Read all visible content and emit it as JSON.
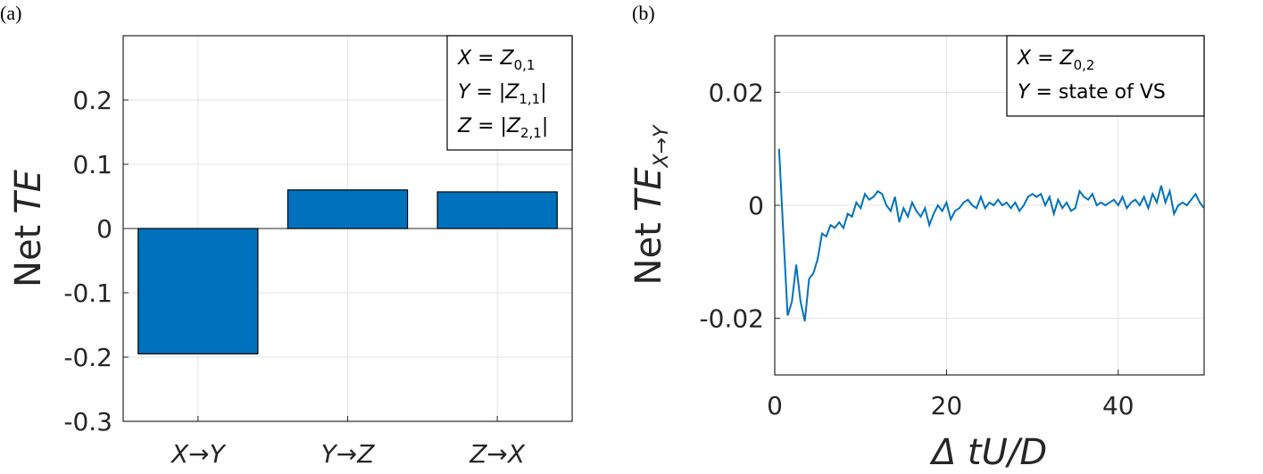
{
  "chart_data": [
    {
      "type": "bar",
      "panel": "(a)",
      "ylabel": {
        "text": "Net",
        "italic": "TE"
      },
      "categories": [
        "X→Y",
        "Y→Z",
        "Z→X"
      ],
      "values": [
        -0.195,
        0.06,
        0.057
      ],
      "color": "#0072bd",
      "ylim": [
        -0.3,
        0.3
      ],
      "yticks": [
        -0.3,
        -0.2,
        -0.1,
        0,
        0.1,
        0.2
      ],
      "grid": true,
      "annotations": [
        {
          "name": "X",
          "op": "=",
          "value": "Z",
          "sub": "0,1"
        },
        {
          "name": "Y",
          "op": "=",
          "value": "|Z",
          "sub": "1,1",
          "tail": "|"
        },
        {
          "name": "Z",
          "op": "=",
          "value": "|Z",
          "sub": "2,1",
          "tail": "|"
        }
      ],
      "legend": "upper right"
    },
    {
      "type": "line",
      "panel": "(b)",
      "ylabel": {
        "text": "Net",
        "italic": "TE",
        "sub": "X→Y"
      },
      "xlabel": "Δ tU/D",
      "x": [
        0.5,
        1,
        1.5,
        2,
        2.5,
        3,
        3.5,
        4,
        4.5,
        5,
        5.5,
        6,
        6.5,
        7,
        7.5,
        8,
        8.5,
        9,
        9.5,
        10,
        10.5,
        11,
        11.5,
        12,
        12.5,
        13,
        13.5,
        14,
        14.5,
        15,
        15.5,
        16,
        16.5,
        17,
        17.5,
        18,
        18.5,
        19,
        19.5,
        20,
        20.5,
        21,
        21.5,
        22,
        22.5,
        23,
        23.5,
        24,
        24.5,
        25,
        25.5,
        26,
        26.5,
        27,
        27.5,
        28,
        28.5,
        29,
        29.5,
        30,
        30.5,
        31,
        31.5,
        32,
        32.5,
        33,
        33.5,
        34,
        34.5,
        35,
        35.5,
        36,
        36.5,
        37,
        37.5,
        38,
        38.5,
        39,
        39.5,
        40,
        40.5,
        41,
        41.5,
        42,
        42.5,
        43,
        43.5,
        44,
        44.5,
        45,
        45.5,
        46,
        46.5,
        47,
        47.5,
        48,
        48.5,
        49,
        49.5,
        50
      ],
      "values": [
        0.01,
        -0.005,
        -0.0195,
        -0.017,
        -0.0105,
        -0.017,
        -0.0205,
        -0.013,
        -0.012,
        -0.0095,
        -0.005,
        -0.0055,
        -0.0035,
        -0.004,
        -0.003,
        -0.004,
        -0.0015,
        -0.002,
        0.0005,
        -0.0005,
        0.002,
        0.001,
        0.0015,
        0.0025,
        0.002,
        0,
        -0.001,
        0.0015,
        -0.003,
        -0.0005,
        -0.002,
        0.0005,
        -0.001,
        -0.002,
        -0.0005,
        -0.0035,
        -0.0015,
        0,
        -0.001,
        0.0005,
        -0.0025,
        -0.001,
        -0.0005,
        0.0005,
        0.001,
        0,
        -0.0005,
        0.0015,
        -0.0005,
        0.0005,
        0,
        0.001,
        0,
        0.0005,
        -0.0005,
        0.0005,
        -0.001,
        0,
        0.0015,
        0.002,
        0.0015,
        0.002,
        0,
        0.0015,
        -0.0015,
        0.001,
        -0.0005,
        0.0005,
        -0.001,
        -0.0005,
        0.0025,
        0.0015,
        0.001,
        0.002,
        0,
        0.0005,
        0,
        0.0005,
        0.001,
        0,
        0.0015,
        -0.0005,
        0.0005,
        0.001,
        0,
        0.0015,
        -0.0005,
        0.002,
        0.0005,
        0.0035,
        0.0005,
        0.0025,
        -0.0015,
        0,
        0.0005,
        0,
        0.001,
        0.002,
        0.0005,
        -0.0005
      ],
      "color": "#0072bd",
      "xlim": [
        0,
        50
      ],
      "xticks": [
        0,
        20,
        40
      ],
      "ylim": [
        -0.03,
        0.03
      ],
      "yticks": [
        -0.02,
        0,
        0.02
      ],
      "grid": true,
      "annotations": [
        {
          "name": "X",
          "op": "=",
          "value": "Z",
          "sub": "0,2"
        },
        {
          "name": "Y",
          "op": "=",
          "value": "state of VS"
        }
      ],
      "legend": "upper right"
    }
  ]
}
